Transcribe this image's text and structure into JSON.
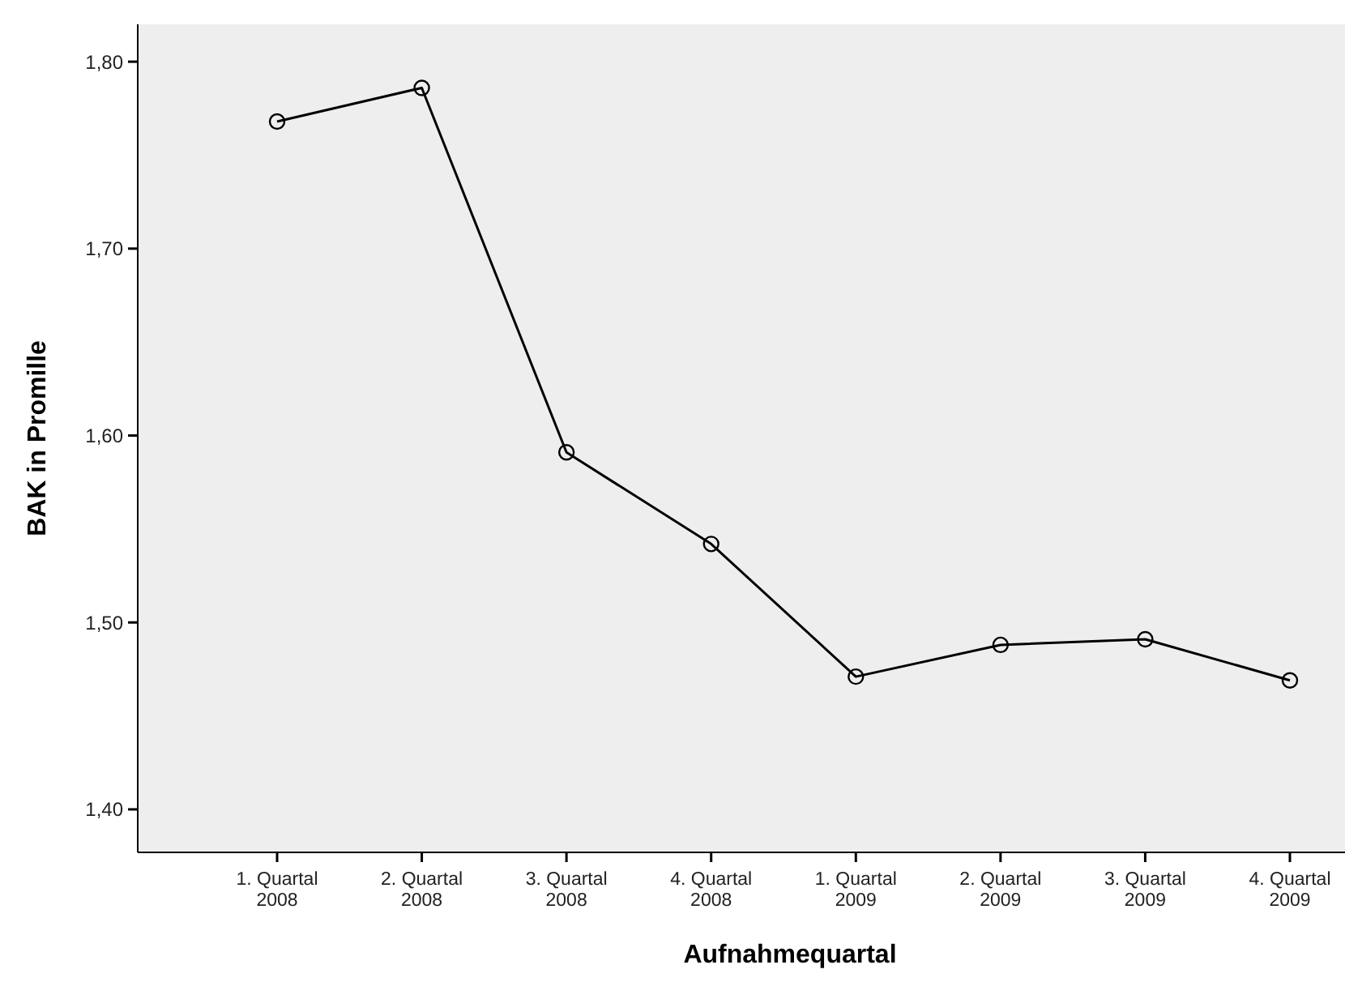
{
  "chart_data": {
    "type": "line",
    "xlabel": "Aufnahmequartal",
    "ylabel": "BAK in Promille",
    "categories": [
      "1. Quartal 2008",
      "2. Quartal 2008",
      "3. Quartal 2008",
      "4. Quartal 2008",
      "1. Quartal 2009",
      "2. Quartal 2009",
      "3. Quartal 2009",
      "4. Quartal 2009"
    ],
    "series": [
      {
        "color": "#000000",
        "values": [
          1.768,
          1.786,
          1.591,
          1.542,
          1.471,
          1.488,
          1.491,
          1.469
        ]
      }
    ],
    "ylim": [
      1.377,
      1.82
    ],
    "yticks": [
      {
        "value": 1.4,
        "label": "1,40"
      },
      {
        "value": 1.5,
        "label": "1,50"
      },
      {
        "value": 1.6,
        "label": "1,60"
      },
      {
        "value": 1.7,
        "label": "1,70"
      },
      {
        "value": 1.8,
        "label": "1,80"
      }
    ],
    "marker": "circle",
    "line_style": "solid",
    "grid": false
  }
}
